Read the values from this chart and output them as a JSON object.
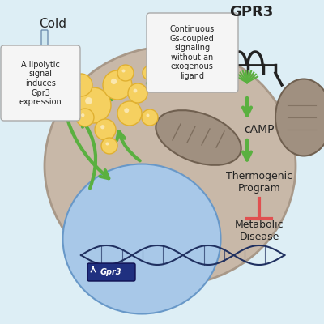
{
  "bg_color": "#ddeef5",
  "cell_color": "#c8b8a8",
  "cell_border": "#a89888",
  "nucleus_color": "#a8c8e8",
  "nucleus_border": "#6898c8",
  "lipid_color": "#f5d060",
  "lipid_border": "#e0b030",
  "mito_color": "#a09080",
  "mito_border": "#706050",
  "arrow_color": "#5ab040",
  "inhibit_color": "#e05050",
  "text_dark": "#222222",
  "text_box_bg": "#f0f0f0",
  "text_box_border": "#aaaaaa",
  "title": "GPR3",
  "label_cold": "Cold",
  "label_lipolytic": "A lipolytic\nsignal\ninduces\nGpr3\nexpression",
  "label_continuous": "Continuous\nGs-coupled\nsignaling\nwithout an\nexogenous\nligand",
  "label_camp": "cAMP",
  "label_thermo": "Thermogenic\nProgram",
  "label_metabolic": "Metabolic\nDisease",
  "label_gpr3_gene": "Gpr3"
}
